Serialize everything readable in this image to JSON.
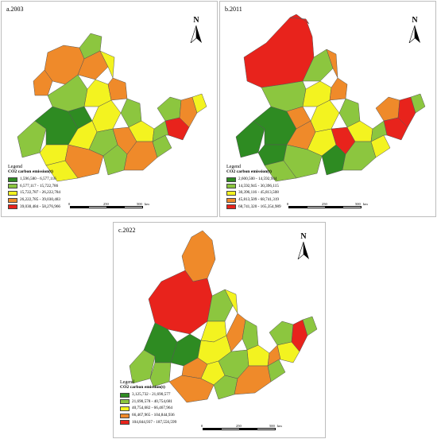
{
  "panels": [
    {
      "label": "a.2003",
      "legend_title": "Legend",
      "legend_subtitle": "CO2 carbon emission(t)",
      "legend_items": [
        {
          "range": "1,596,580 - 6,577,116",
          "color": "#2e8b22"
        },
        {
          "range": "6,577,117 - 15,722,786",
          "color": "#8cc63f"
        },
        {
          "range": "15,722,787 - 26,222,784",
          "color": "#f3f320"
        },
        {
          "range": "26,222,785 - 39,030,483",
          "color": "#ef8a2a"
        },
        {
          "range": "39,030,484 - 58,276,966",
          "color": "#e8231c"
        }
      ],
      "scale": [
        "0",
        "250",
        "500"
      ],
      "scale_unit": "km",
      "north": "N"
    },
    {
      "label": "b.2011",
      "legend_title": "Legend",
      "legend_subtitle": "CO2 carbon emission(t)",
      "legend_items": [
        {
          "range": "2,600,500 - 14,592,944",
          "color": "#2e8b22"
        },
        {
          "range": "14,592,945 - 30,396,115",
          "color": "#8cc63f"
        },
        {
          "range": "30,396,116 - 45,813,508",
          "color": "#f3f320"
        },
        {
          "range": "45,813,509 - 68,741,319",
          "color": "#ef8a2a"
        },
        {
          "range": "68,741,320 - 165,354,989",
          "color": "#e8231c"
        }
      ],
      "scale": [
        "0",
        "250",
        "500"
      ],
      "scale_unit": "km",
      "north": "N"
    },
    {
      "label": "c.2022",
      "legend_title": "Legend",
      "legend_subtitle": "CO2 carbon emission(t)",
      "legend_items": [
        {
          "range": "3,125,732 - 21,690,577",
          "color": "#2e8b22"
        },
        {
          "range": "21,690,578 - 40,754,681",
          "color": "#8cc63f"
        },
        {
          "range": "40,754,682 - 66,467,964",
          "color": "#f3f320"
        },
        {
          "range": "66,467,965 - 104,844,936",
          "color": "#ef8a2a"
        },
        {
          "range": "104,844,937 - 187,556,599",
          "color": "#e8231c"
        }
      ],
      "scale": [
        "0",
        "250",
        "500"
      ],
      "scale_unit": "km",
      "north": "N"
    }
  ]
}
